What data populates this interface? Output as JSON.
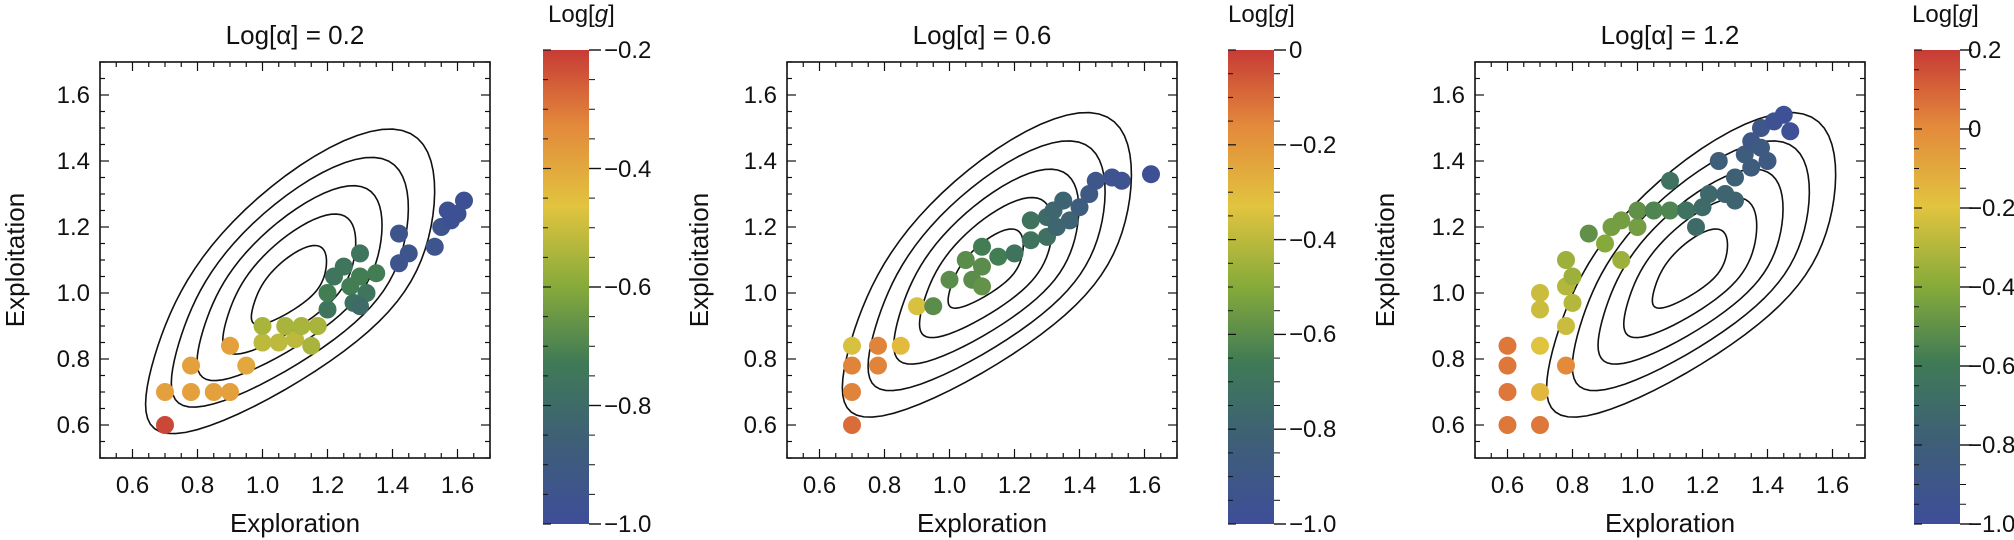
{
  "chart_data": [
    {
      "type": "scatter",
      "title": "Log[α] = 0.2",
      "xlabel": "Exploration",
      "ylabel": "Exploitation",
      "xlim": [
        0.5,
        1.7
      ],
      "ylim": [
        0.5,
        1.7
      ],
      "xticks": [
        "0.6",
        "0.8",
        "1.0",
        "1.2",
        "1.4",
        "1.6"
      ],
      "yticks": [
        "0.6",
        "0.8",
        "1.0",
        "1.2",
        "1.4",
        "1.6"
      ],
      "colorbar": {
        "label": "Log[g]",
        "range": [
          -1.0,
          -0.2
        ],
        "ticks": [
          "-0.2",
          "-0.4",
          "-0.6",
          "-0.8",
          "-1.0"
        ]
      },
      "contour_peak": [
        1.02,
        1.0
      ],
      "points": [
        {
          "x": 0.7,
          "y": 0.6,
          "g": -0.22
        },
        {
          "x": 0.7,
          "y": 0.7,
          "g": -0.38
        },
        {
          "x": 0.78,
          "y": 0.7,
          "g": -0.38
        },
        {
          "x": 0.85,
          "y": 0.7,
          "g": -0.38
        },
        {
          "x": 0.9,
          "y": 0.7,
          "g": -0.38
        },
        {
          "x": 0.78,
          "y": 0.78,
          "g": -0.38
        },
        {
          "x": 0.95,
          "y": 0.78,
          "g": -0.4
        },
        {
          "x": 0.9,
          "y": 0.84,
          "g": -0.38
        },
        {
          "x": 1.0,
          "y": 0.85,
          "g": -0.52
        },
        {
          "x": 1.05,
          "y": 0.85,
          "g": -0.52
        },
        {
          "x": 1.1,
          "y": 0.86,
          "g": -0.52
        },
        {
          "x": 1.15,
          "y": 0.84,
          "g": -0.55
        },
        {
          "x": 1.0,
          "y": 0.9,
          "g": -0.55
        },
        {
          "x": 1.07,
          "y": 0.9,
          "g": -0.55
        },
        {
          "x": 1.12,
          "y": 0.9,
          "g": -0.55
        },
        {
          "x": 1.17,
          "y": 0.9,
          "g": -0.55
        },
        {
          "x": 1.2,
          "y": 0.95,
          "g": -0.75
        },
        {
          "x": 1.2,
          "y": 1.0,
          "g": -0.72
        },
        {
          "x": 1.22,
          "y": 1.05,
          "g": -0.75
        },
        {
          "x": 1.25,
          "y": 1.08,
          "g": -0.75
        },
        {
          "x": 1.27,
          "y": 1.02,
          "g": -0.72
        },
        {
          "x": 1.3,
          "y": 1.05,
          "g": -0.72
        },
        {
          "x": 1.32,
          "y": 1.0,
          "g": -0.75
        },
        {
          "x": 1.28,
          "y": 0.97,
          "g": -0.78
        },
        {
          "x": 1.3,
          "y": 1.12,
          "g": -0.75
        },
        {
          "x": 1.3,
          "y": 0.96,
          "g": -0.8
        },
        {
          "x": 1.35,
          "y": 1.06,
          "g": -0.72
        },
        {
          "x": 1.42,
          "y": 1.18,
          "g": -0.95
        },
        {
          "x": 1.42,
          "y": 1.09,
          "g": -0.95
        },
        {
          "x": 1.45,
          "y": 1.12,
          "g": -0.95
        },
        {
          "x": 1.53,
          "y": 1.14,
          "g": -0.95
        },
        {
          "x": 1.55,
          "y": 1.2,
          "g": -0.95
        },
        {
          "x": 1.57,
          "y": 1.25,
          "g": -0.98
        },
        {
          "x": 1.6,
          "y": 1.24,
          "g": -0.98
        },
        {
          "x": 1.62,
          "y": 1.28,
          "g": -0.98
        },
        {
          "x": 1.58,
          "y": 1.22,
          "g": -0.98
        }
      ]
    },
    {
      "type": "scatter",
      "title": "Log[α] = 0.6",
      "xlabel": "Exploration",
      "ylabel": "Exploitation",
      "xlim": [
        0.5,
        1.7
      ],
      "ylim": [
        0.5,
        1.7
      ],
      "xticks": [
        "0.6",
        "0.8",
        "1.0",
        "1.2",
        "1.4",
        "1.6"
      ],
      "yticks": [
        "0.6",
        "0.8",
        "1.0",
        "1.2",
        "1.4",
        "1.6"
      ],
      "colorbar": {
        "label": "Log[g]",
        "range": [
          -1.0,
          0.0
        ],
        "ticks": [
          "0",
          "-0.2",
          "-0.4",
          "-0.6",
          "-0.8",
          "-1.0"
        ]
      },
      "contour_peak": [
        1.05,
        1.05
      ],
      "points": [
        {
          "x": 0.7,
          "y": 0.6,
          "g": -0.1
        },
        {
          "x": 0.7,
          "y": 0.7,
          "g": -0.15
        },
        {
          "x": 0.7,
          "y": 0.78,
          "g": -0.15
        },
        {
          "x": 0.7,
          "y": 0.84,
          "g": -0.35
        },
        {
          "x": 0.78,
          "y": 0.78,
          "g": -0.15
        },
        {
          "x": 0.78,
          "y": 0.84,
          "g": -0.15
        },
        {
          "x": 0.85,
          "y": 0.84,
          "g": -0.3
        },
        {
          "x": 0.9,
          "y": 0.96,
          "g": -0.35
        },
        {
          "x": 0.95,
          "y": 0.96,
          "g": -0.6
        },
        {
          "x": 1.0,
          "y": 1.04,
          "g": -0.6
        },
        {
          "x": 1.05,
          "y": 1.1,
          "g": -0.6
        },
        {
          "x": 1.07,
          "y": 1.04,
          "g": -0.6
        },
        {
          "x": 1.1,
          "y": 1.02,
          "g": -0.58
        },
        {
          "x": 1.1,
          "y": 1.08,
          "g": -0.6
        },
        {
          "x": 1.1,
          "y": 1.14,
          "g": -0.65
        },
        {
          "x": 1.15,
          "y": 1.11,
          "g": -0.65
        },
        {
          "x": 1.2,
          "y": 1.12,
          "g": -0.7
        },
        {
          "x": 1.25,
          "y": 1.16,
          "g": -0.7
        },
        {
          "x": 1.25,
          "y": 1.22,
          "g": -0.7
        },
        {
          "x": 1.3,
          "y": 1.17,
          "g": -0.72
        },
        {
          "x": 1.3,
          "y": 1.23,
          "g": -0.75
        },
        {
          "x": 1.32,
          "y": 1.25,
          "g": -0.78
        },
        {
          "x": 1.33,
          "y": 1.2,
          "g": -0.78
        },
        {
          "x": 1.35,
          "y": 1.28,
          "g": -0.8
        },
        {
          "x": 1.37,
          "y": 1.22,
          "g": -0.8
        },
        {
          "x": 1.4,
          "y": 1.26,
          "g": -0.85
        },
        {
          "x": 1.43,
          "y": 1.3,
          "g": -0.88
        },
        {
          "x": 1.45,
          "y": 1.34,
          "g": -0.92
        },
        {
          "x": 1.5,
          "y": 1.35,
          "g": -0.95
        },
        {
          "x": 1.53,
          "y": 1.34,
          "g": -0.95
        },
        {
          "x": 1.62,
          "y": 1.36,
          "g": -0.98
        }
      ]
    },
    {
      "type": "scatter",
      "title": "Log[α] = 1.2",
      "xlabel": "Exploration",
      "ylabel": "Exploitation",
      "xlim": [
        0.5,
        1.7
      ],
      "ylim": [
        0.5,
        1.7
      ],
      "xticks": [
        "0.6",
        "0.8",
        "1.0",
        "1.2",
        "1.4",
        "1.6"
      ],
      "yticks": [
        "0.6",
        "0.8",
        "1.0",
        "1.2",
        "1.4",
        "1.6"
      ],
      "colorbar": {
        "label": "Log[g]",
        "range": [
          -1.0,
          0.2
        ],
        "ticks": [
          "0.2",
          "0",
          "-0.2",
          "-0.4",
          "-0.6",
          "-0.8",
          "-1.0"
        ]
      },
      "contour_peak": [
        1.1,
        1.05
      ],
      "points": [
        {
          "x": 0.6,
          "y": 0.6,
          "g": 0.05
        },
        {
          "x": 0.6,
          "y": 0.7,
          "g": 0.05
        },
        {
          "x": 0.6,
          "y": 0.78,
          "g": 0.05
        },
        {
          "x": 0.6,
          "y": 0.84,
          "g": 0.05
        },
        {
          "x": 0.7,
          "y": 0.6,
          "g": 0.05
        },
        {
          "x": 0.7,
          "y": 0.7,
          "g": -0.15
        },
        {
          "x": 0.7,
          "y": 0.84,
          "g": -0.2
        },
        {
          "x": 0.7,
          "y": 0.95,
          "g": -0.25
        },
        {
          "x": 0.7,
          "y": 1.0,
          "g": -0.25
        },
        {
          "x": 0.78,
          "y": 0.78,
          "g": 0.0
        },
        {
          "x": 0.78,
          "y": 0.9,
          "g": -0.25
        },
        {
          "x": 0.8,
          "y": 0.97,
          "g": -0.3
        },
        {
          "x": 0.78,
          "y": 1.02,
          "g": -0.3
        },
        {
          "x": 0.8,
          "y": 1.05,
          "g": -0.35
        },
        {
          "x": 0.78,
          "y": 1.1,
          "g": -0.35
        },
        {
          "x": 0.85,
          "y": 1.18,
          "g": -0.5
        },
        {
          "x": 0.9,
          "y": 1.15,
          "g": -0.4
        },
        {
          "x": 0.92,
          "y": 1.2,
          "g": -0.45
        },
        {
          "x": 0.95,
          "y": 1.1,
          "g": -0.35
        },
        {
          "x": 0.95,
          "y": 1.22,
          "g": -0.45
        },
        {
          "x": 1.0,
          "y": 1.2,
          "g": -0.45
        },
        {
          "x": 1.0,
          "y": 1.25,
          "g": -0.5
        },
        {
          "x": 1.05,
          "y": 1.25,
          "g": -0.55
        },
        {
          "x": 1.1,
          "y": 1.25,
          "g": -0.55
        },
        {
          "x": 1.1,
          "y": 1.34,
          "g": -0.65
        },
        {
          "x": 1.15,
          "y": 1.25,
          "g": -0.65
        },
        {
          "x": 1.18,
          "y": 1.2,
          "g": -0.7
        },
        {
          "x": 1.2,
          "y": 1.26,
          "g": -0.7
        },
        {
          "x": 1.22,
          "y": 1.3,
          "g": -0.72
        },
        {
          "x": 1.25,
          "y": 1.4,
          "g": -0.8
        },
        {
          "x": 1.27,
          "y": 1.3,
          "g": -0.75
        },
        {
          "x": 1.3,
          "y": 1.35,
          "g": -0.78
        },
        {
          "x": 1.3,
          "y": 1.28,
          "g": -0.75
        },
        {
          "x": 1.33,
          "y": 1.42,
          "g": -0.82
        },
        {
          "x": 1.35,
          "y": 1.38,
          "g": -0.82
        },
        {
          "x": 1.35,
          "y": 1.46,
          "g": -0.88
        },
        {
          "x": 1.38,
          "y": 1.44,
          "g": -0.85
        },
        {
          "x": 1.38,
          "y": 1.5,
          "g": -0.9
        },
        {
          "x": 1.4,
          "y": 1.4,
          "g": -0.85
        },
        {
          "x": 1.42,
          "y": 1.52,
          "g": -0.95
        },
        {
          "x": 1.45,
          "y": 1.54,
          "g": -0.98
        },
        {
          "x": 1.47,
          "y": 1.49,
          "g": -0.98
        }
      ]
    }
  ]
}
